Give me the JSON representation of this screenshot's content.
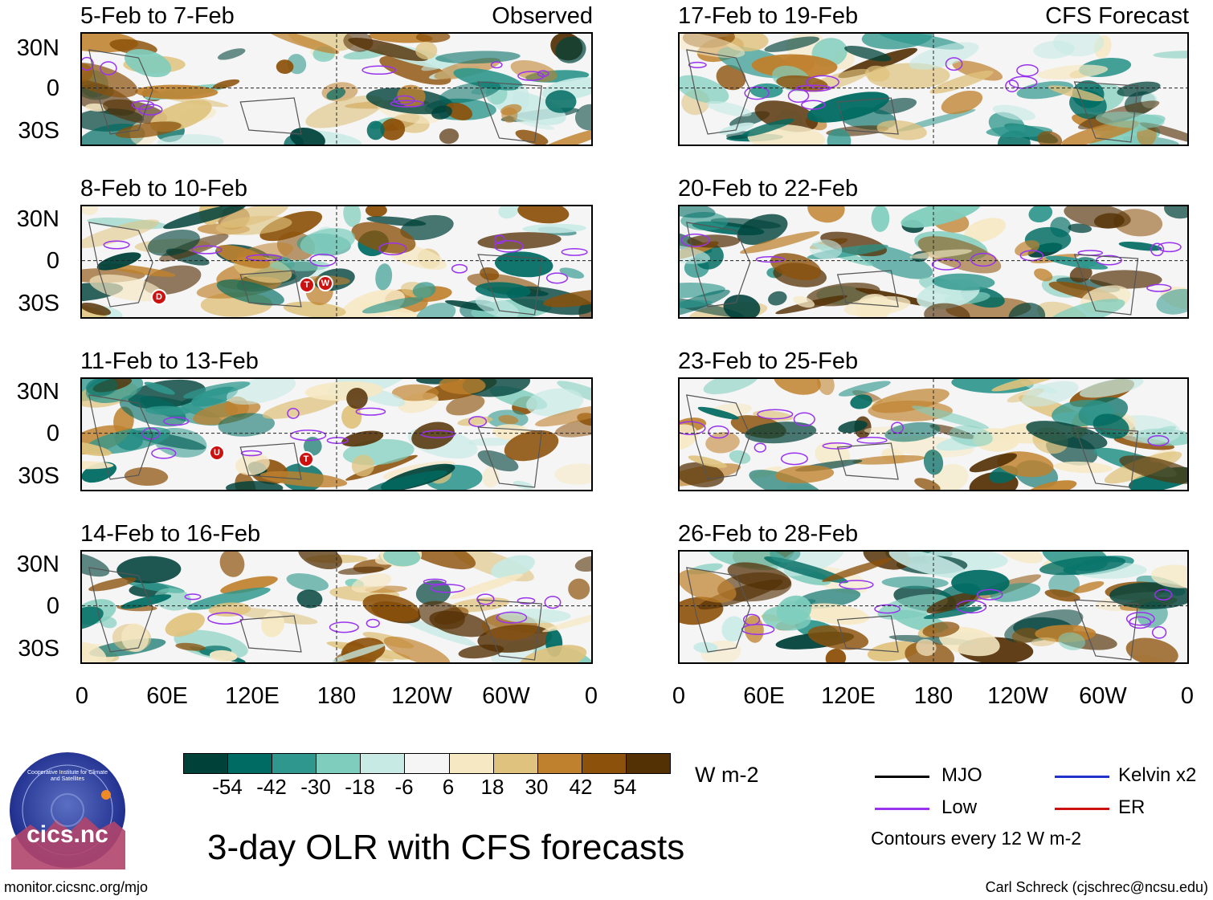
{
  "panels_left_tag": "Observed",
  "panels_right_tag": "CFS Forecast",
  "panels": [
    {
      "title": "5-Feb to 7-Feb",
      "storms": []
    },
    {
      "title": "8-Feb to 10-Feb",
      "storms": [
        "D",
        "T",
        "W"
      ]
    },
    {
      "title": "11-Feb to 13-Feb",
      "storms": [
        "U",
        "T"
      ]
    },
    {
      "title": "14-Feb to 16-Feb",
      "storms": []
    },
    {
      "title": "17-Feb to 19-Feb",
      "storms": []
    },
    {
      "title": "20-Feb to 22-Feb",
      "storms": []
    },
    {
      "title": "23-Feb to 25-Feb",
      "storms": []
    },
    {
      "title": "26-Feb to 28-Feb",
      "storms": []
    }
  ],
  "lat_labels": [
    "30N",
    "0",
    "30S"
  ],
  "lon_labels": [
    "0",
    "60E",
    "120E",
    "180",
    "120W",
    "60W",
    "0"
  ],
  "colorbar": {
    "colors": [
      "#00413a",
      "#006b62",
      "#2f978d",
      "#7fcdbd",
      "#c7eae5",
      "#f5f5f5",
      "#f6e8c3",
      "#dfc27d",
      "#bf812d",
      "#8c510a",
      "#543005"
    ],
    "labels": [
      "-54",
      "-42",
      "-30",
      "-18",
      "-6",
      "6",
      "18",
      "30",
      "42",
      "54"
    ],
    "units": "W m-2"
  },
  "legend": {
    "items": [
      {
        "label": "MJO",
        "color": "#000000"
      },
      {
        "label": "Kelvin x2",
        "color": "#2233cc"
      },
      {
        "label": "Low",
        "color": "#9933ee"
      },
      {
        "label": "ER",
        "color": "#cc1111"
      }
    ],
    "note": "Contours every 12 W m-2"
  },
  "main_title": "3-day OLR with CFS forecasts",
  "logo_text": "cics.nc",
  "logo_ring_text": "Cooperative Institute for Climate and Satellites",
  "footer_left": "monitor.cicsnc.org/mjo",
  "footer_right": "Carl Schreck (cjschrec@ncsu.edu)"
}
